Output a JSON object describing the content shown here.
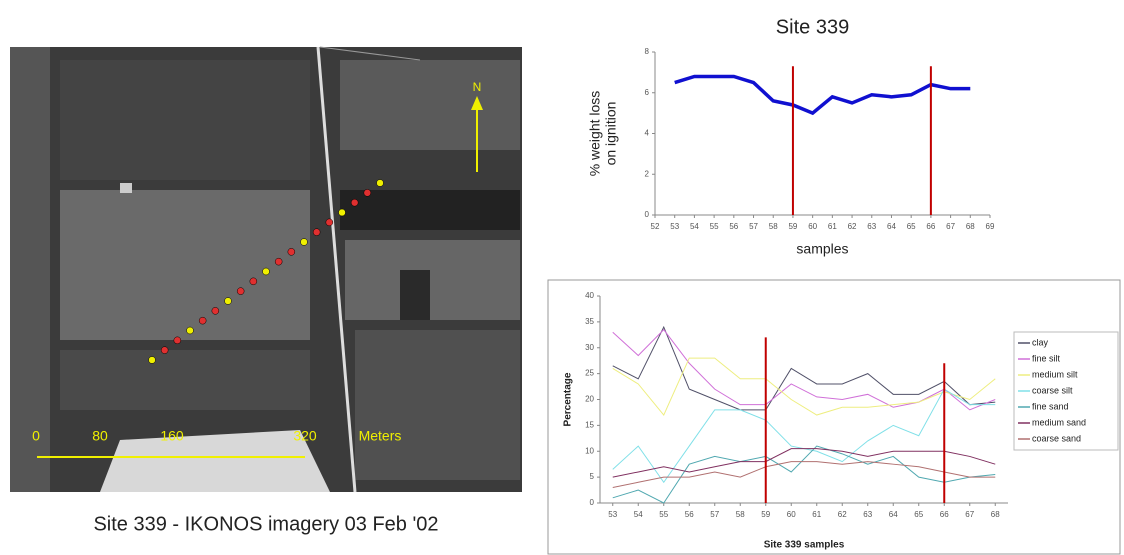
{
  "image": {
    "caption": "Site 339 - IKONOS imagery 03 Feb '02",
    "north": "N",
    "scale_labels": [
      "0",
      "80",
      "160",
      "320",
      "Meters"
    ]
  },
  "chart_data": [
    {
      "type": "line",
      "title": "Site 339",
      "ylabel": [
        "% weight loss",
        "on ignition"
      ],
      "xlabel": "samples",
      "x": [
        53,
        54,
        55,
        56,
        57,
        58,
        59,
        60,
        61,
        62,
        63,
        64,
        65,
        66,
        67,
        68
      ],
      "series": [
        {
          "color": "#1010d0",
          "values": [
            6.5,
            6.8,
            6.8,
            6.8,
            6.5,
            5.6,
            5.4,
            5.0,
            5.8,
            5.5,
            5.9,
            5.8,
            5.9,
            6.4,
            6.2,
            6.2
          ]
        }
      ],
      "xlim": [
        52,
        69
      ],
      "xticks": [
        52,
        53,
        54,
        55,
        56,
        57,
        58,
        59,
        60,
        61,
        62,
        63,
        64,
        65,
        66,
        67,
        68,
        69
      ],
      "ylim": [
        0,
        8
      ],
      "yticks": [
        0,
        2,
        4,
        6,
        8
      ],
      "reference_lines": [
        {
          "x": 59,
          "y": 7.3,
          "color": "#c00000"
        },
        {
          "x": 66,
          "y": 7.3,
          "color": "#c00000"
        }
      ]
    },
    {
      "type": "line",
      "ylabel": [
        "Percentage"
      ],
      "xlabel": "Site 339 samples",
      "x": [
        53,
        54,
        55,
        56,
        57,
        58,
        59,
        60,
        61,
        62,
        63,
        64,
        65,
        66,
        67,
        68
      ],
      "series": [
        {
          "name": "clay",
          "color": "#505068",
          "values": [
            26.5,
            24,
            34,
            22,
            20,
            18,
            18,
            26,
            23,
            23,
            25,
            21,
            21,
            23.5,
            19,
            19.5
          ]
        },
        {
          "name": "fine silt",
          "color": "#d070d8",
          "values": [
            33,
            28.5,
            33.5,
            27,
            22,
            19,
            19,
            23,
            20.5,
            20,
            21,
            18.5,
            19.5,
            22,
            18,
            20
          ]
        },
        {
          "name": "medium silt",
          "color": "#eeee80",
          "values": [
            26,
            23,
            17,
            28,
            28,
            24,
            24,
            20,
            17,
            18.5,
            18.5,
            19,
            19.5,
            21.5,
            20,
            24
          ]
        },
        {
          "name": "coarse silt",
          "color": "#80e0e8",
          "values": [
            6.5,
            11,
            4,
            11,
            18,
            18,
            16,
            11,
            10,
            8,
            12,
            15,
            13,
            22,
            19,
            19
          ]
        },
        {
          "name": "fine sand",
          "color": "#50a8b0",
          "values": [
            1,
            2.5,
            0,
            7.5,
            9,
            8,
            9,
            6,
            11,
            9.5,
            7.5,
            9,
            5,
            4,
            5,
            5.5
          ]
        },
        {
          "name": "medium sand",
          "color": "#803060",
          "values": [
            5,
            6,
            7,
            6,
            7,
            8,
            8,
            10.5,
            10.5,
            10,
            9,
            10,
            10,
            10,
            9,
            7.5
          ]
        },
        {
          "name": "coarse sand",
          "color": "#b07070",
          "values": [
            3,
            4,
            5,
            5,
            6,
            5,
            7,
            8,
            8,
            7.5,
            8,
            7.5,
            7,
            6,
            5,
            5
          ]
        }
      ],
      "xlim": [
        52.5,
        68.5
      ],
      "xticks": [
        53,
        54,
        55,
        56,
        57,
        58,
        59,
        60,
        61,
        62,
        63,
        64,
        65,
        66,
        67,
        68
      ],
      "ylim": [
        0,
        40
      ],
      "yticks": [
        0,
        5,
        10,
        15,
        20,
        25,
        30,
        35,
        40
      ],
      "reference_lines": [
        {
          "x": 59,
          "y": 32,
          "color": "#c00000"
        },
        {
          "x": 66,
          "y": 27,
          "color": "#c00000"
        }
      ]
    }
  ]
}
